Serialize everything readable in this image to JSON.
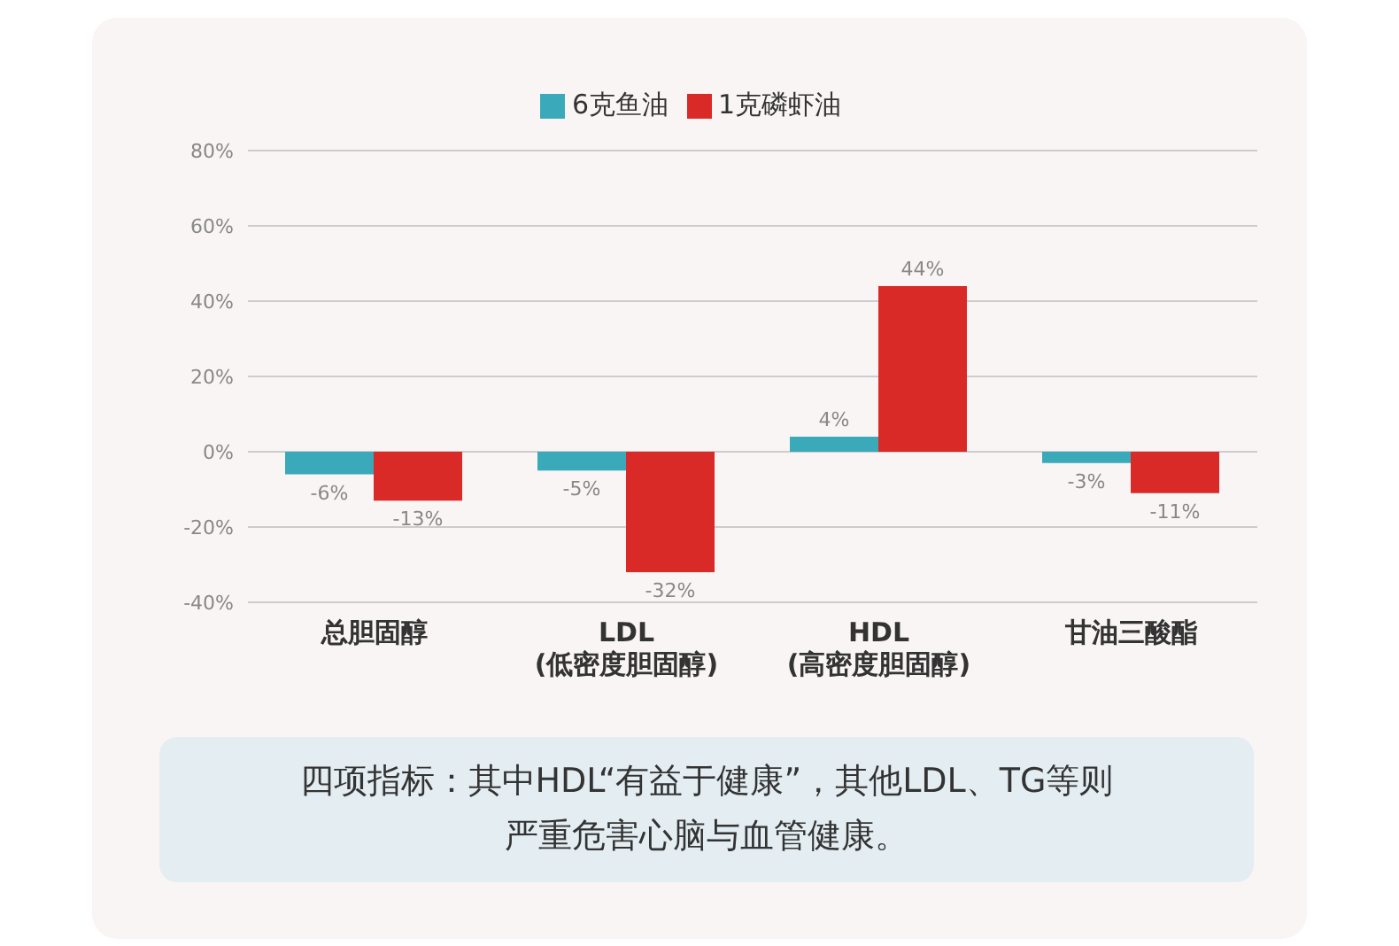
{
  "chart_data": {
    "type": "bar",
    "categories": [
      "总胆固醇",
      "LDL\n(低密度胆固醇)",
      "HDL\n(高密度胆固醇)",
      "甘油三酸酯"
    ],
    "series": [
      {
        "name": "6克鱼油",
        "color": "#3aa9b9",
        "values": [
          -6,
          -5,
          4,
          -3
        ],
        "value_labels": [
          "-6%",
          "-5%",
          "4%",
          "-3%"
        ]
      },
      {
        "name": "1克磷虾油",
        "color": "#d92a27",
        "values": [
          -13,
          -32,
          44,
          -11
        ],
        "value_labels": [
          "-13%",
          "-32%",
          "44%",
          "-11%"
        ]
      }
    ],
    "ylim": [
      -40,
      80
    ],
    "yticks": [
      {
        "value": -40,
        "label": "-40%"
      },
      {
        "value": -20,
        "label": "-20%"
      },
      {
        "value": 0,
        "label": "0%"
      },
      {
        "value": 20,
        "label": "20%"
      },
      {
        "value": 40,
        "label": "40%"
      },
      {
        "value": 60,
        "label": "60%"
      },
      {
        "value": 80,
        "label": "80%"
      }
    ],
    "grid": "y",
    "legend": "top",
    "annotations": [
      "四项指标：其中HDL“有益于健康”，其他LDL、TG等则严重危害心脑与血管健康。"
    ]
  }
}
